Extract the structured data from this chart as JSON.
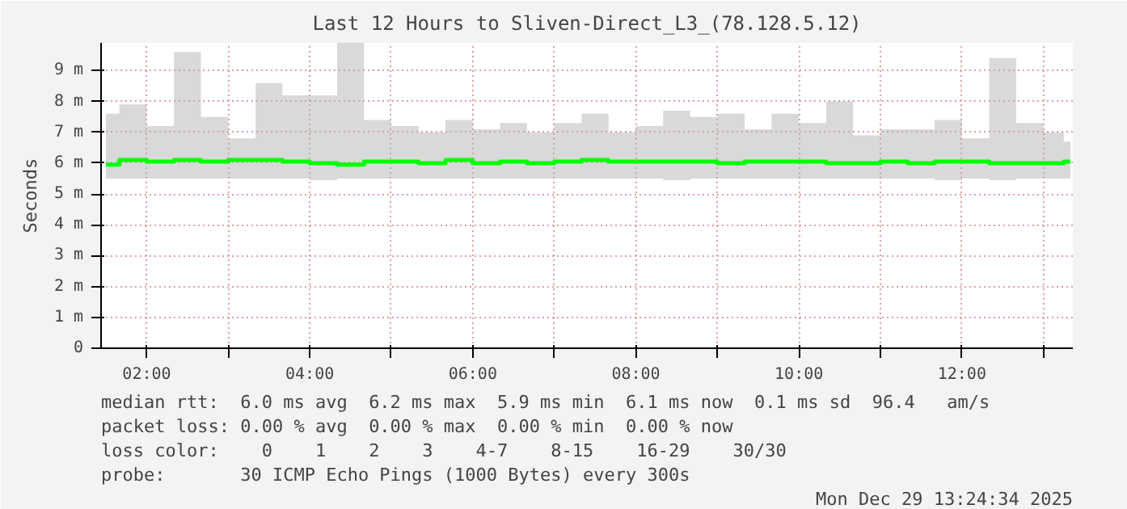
{
  "chart_data": {
    "type": "step",
    "title": "Last 12 Hours to Sliven-Direct_L3_(78.128.5.12)",
    "ylabel": "Seconds",
    "xlim": [
      1.44,
      13.36
    ],
    "ylim": [
      0,
      9.9
    ],
    "xticks": [
      {
        "value": 2,
        "label": "02:00"
      },
      {
        "value": 3,
        "label": null
      },
      {
        "value": 4,
        "label": "04:00"
      },
      {
        "value": 5,
        "label": null
      },
      {
        "value": 6,
        "label": "06:00"
      },
      {
        "value": 7,
        "label": null
      },
      {
        "value": 8,
        "label": "08:00"
      },
      {
        "value": 9,
        "label": null
      },
      {
        "value": 10,
        "label": "10:00"
      },
      {
        "value": 11,
        "label": null
      },
      {
        "value": 12,
        "label": "12:00"
      },
      {
        "value": 13,
        "label": null
      }
    ],
    "yticks": [
      0,
      {
        "value": 1,
        "label": "1 m"
      },
      {
        "value": 2,
        "label": "2 m"
      },
      {
        "value": 3,
        "label": "3 m"
      },
      {
        "value": 4,
        "label": "4 m"
      },
      {
        "value": 5,
        "label": "5 m"
      },
      {
        "value": 6,
        "label": "6 m"
      },
      {
        "value": 7,
        "label": "7 m"
      },
      {
        "value": 8,
        "label": "8 m"
      },
      {
        "value": 9,
        "label": "9 m"
      }
    ],
    "grid": true,
    "x": [
      1.5,
      1.83,
      2.17,
      2.5,
      2.83,
      3.17,
      3.5,
      3.83,
      4.17,
      4.5,
      4.83,
      5.17,
      5.5,
      5.83,
      6.17,
      6.5,
      6.83,
      7.17,
      7.5,
      7.83,
      8.17,
      8.5,
      8.83,
      9.17,
      9.5,
      9.83,
      10.17,
      10.5,
      10.83,
      11.17,
      11.5,
      11.83,
      12.17,
      12.5,
      12.83,
      13.17,
      13.33
    ],
    "series": [
      {
        "color": "#00ff00",
        "values": [
          5.95,
          6.1,
          6.05,
          6.1,
          6.05,
          6.1,
          6.1,
          6.05,
          6.0,
          5.95,
          6.05,
          6.05,
          6.0,
          6.1,
          6.0,
          6.05,
          6.0,
          6.05,
          6.1,
          6.05,
          6.05,
          6.05,
          6.05,
          6.0,
          6.05,
          6.05,
          6.05,
          6.0,
          6.0,
          6.05,
          6.0,
          6.05,
          6.05,
          6.0,
          6.0,
          6.0,
          6.05
        ],
        "lower": [
          5.5,
          5.5,
          5.5,
          5.5,
          5.5,
          5.5,
          5.5,
          5.5,
          5.45,
          5.5,
          5.5,
          5.5,
          5.5,
          5.5,
          5.5,
          5.5,
          5.5,
          5.5,
          5.5,
          5.5,
          5.5,
          5.45,
          5.5,
          5.5,
          5.5,
          5.5,
          5.5,
          5.5,
          5.5,
          5.5,
          5.5,
          5.45,
          5.5,
          5.45,
          5.5,
          5.5,
          5.5
        ],
        "upper": [
          7.6,
          7.9,
          7.2,
          9.6,
          7.5,
          6.8,
          8.6,
          8.2,
          8.2,
          9.9,
          7.4,
          7.2,
          7.0,
          7.4,
          7.1,
          7.3,
          7.0,
          7.3,
          7.6,
          7.0,
          7.2,
          7.7,
          7.5,
          7.6,
          7.1,
          7.6,
          7.3,
          8.0,
          6.9,
          7.1,
          7.1,
          7.4,
          6.8,
          9.4,
          7.3,
          7.0,
          6.7
        ]
      }
    ],
    "annotations": [
      "median rtt:  6.0 ms avg  6.2 ms max  5.9 ms min  6.1 ms now  0.1 ms sd  96.4   am/s",
      "packet loss: 0.00 % avg  0.00 % max  0.00 % min  0.00 % now",
      "loss color:    0    1    2    3    4-7    8-15    16-29    30/30",
      "probe:       30 ICMP Echo Pings (1000 Bytes) every 300s",
      "Mon Dec 29 13:24:34 2025"
    ]
  }
}
